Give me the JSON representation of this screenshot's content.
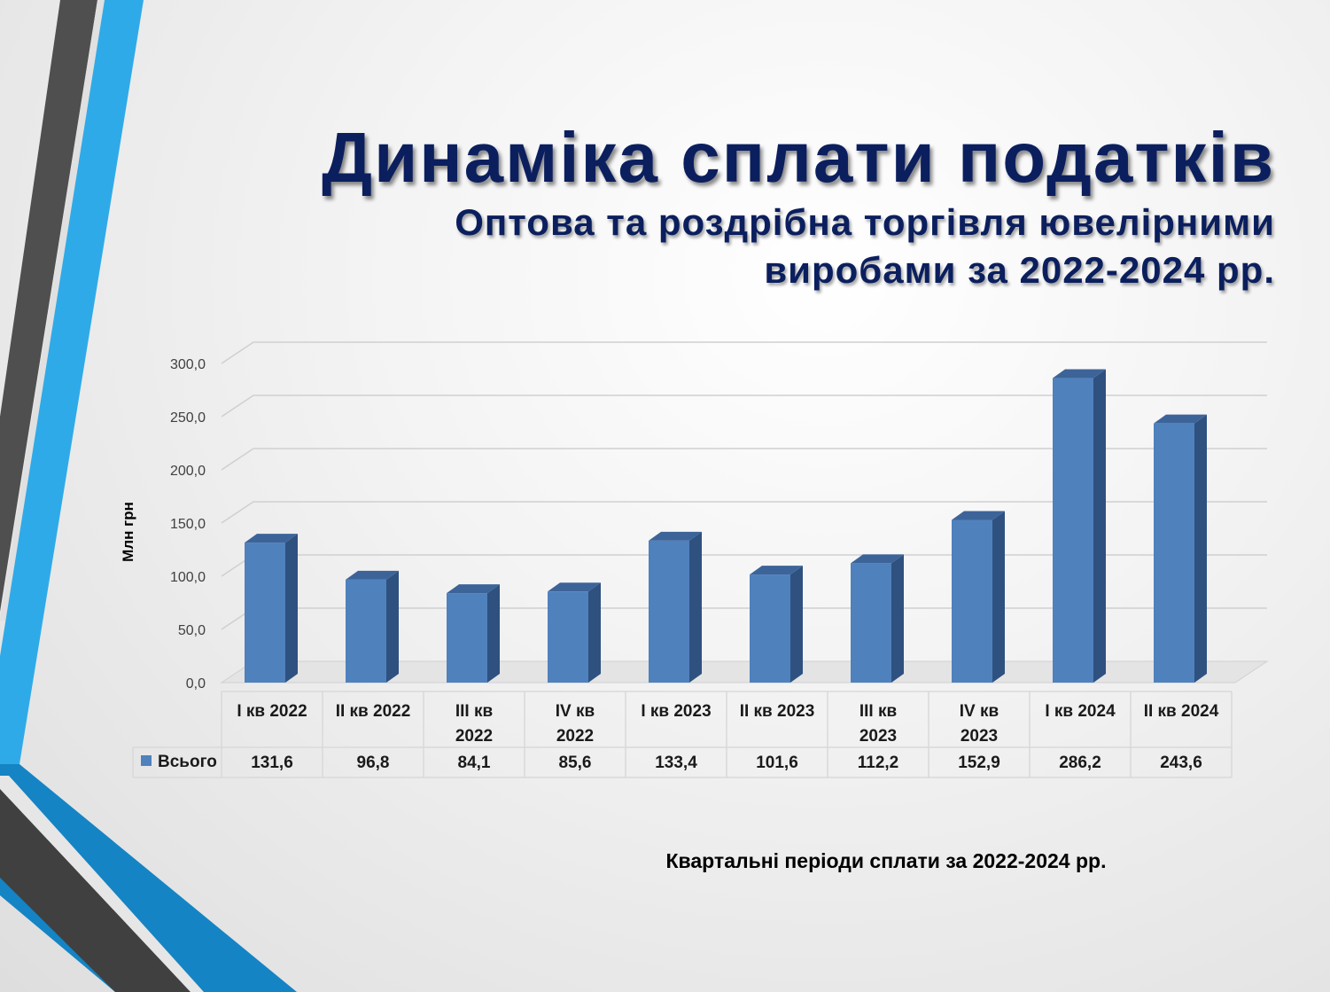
{
  "title": "Динаміка сплати податків",
  "subtitle_lines": [
    "Оптова та роздрібна торгівля ювелірними",
    "виробами за 2022-2024 рр."
  ],
  "colors": {
    "title": "#0b1f5e",
    "bar_front": "#4f81bd",
    "bar_side": "#2f5180",
    "bar_top": "#3d6499"
  },
  "chart_data": {
    "type": "bar",
    "categories": [
      [
        "I кв 2022"
      ],
      [
        "II кв 2022"
      ],
      [
        "III кв",
        "2022"
      ],
      [
        "IV кв",
        "2022"
      ],
      [
        "I кв 2023"
      ],
      [
        "II кв 2023"
      ],
      [
        "III кв",
        "2023"
      ],
      [
        "IV кв",
        "2023"
      ],
      [
        "I кв 2024"
      ],
      [
        "II кв 2024"
      ]
    ],
    "series": [
      {
        "name": "Всього",
        "values": [
          131.6,
          96.8,
          84.1,
          85.6,
          133.4,
          101.6,
          112.2,
          152.9,
          286.2,
          243.6
        ],
        "value_labels": [
          "131,6",
          "96,8",
          "84,1",
          "85,6",
          "133,4",
          "101,6",
          "112,2",
          "152,9",
          "286,2",
          "243,6"
        ]
      }
    ],
    "ylabel": "Млн грн",
    "xlabel": "Квартальні періоди сплати за 2022-2024 рр.",
    "ylim": [
      0,
      300
    ],
    "y_ticks": [
      0,
      50,
      100,
      150,
      200,
      250,
      300
    ],
    "y_tick_labels": [
      "0,0",
      "50,0",
      "100,0",
      "150,0",
      "200,0",
      "250,0",
      "300,0"
    ],
    "grid": true,
    "legend": "data-table",
    "three_d": true
  }
}
